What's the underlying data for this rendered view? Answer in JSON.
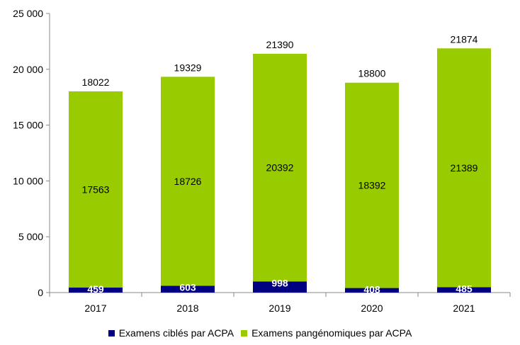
{
  "chart_data": {
    "type": "bar",
    "stacked": true,
    "categories": [
      "2017",
      "2018",
      "2019",
      "2020",
      "2021"
    ],
    "series": [
      {
        "name": "Examens ciblés par ACPA",
        "color": "#000080",
        "values": [
          459,
          603,
          998,
          408,
          485
        ]
      },
      {
        "name": "Examens pangénomiques par ACPA",
        "color": "#99cc00",
        "values": [
          17563,
          18726,
          20392,
          18392,
          21389
        ]
      }
    ],
    "totals": [
      18022,
      19329,
      21390,
      18800,
      21874
    ],
    "ylim": [
      0,
      25000
    ],
    "yticks": [
      0,
      5000,
      10000,
      15000,
      20000,
      25000
    ],
    "ytick_labels": [
      "0",
      "5 000",
      "10 000",
      "15 000",
      "20 000",
      "25 000"
    ],
    "grid": false,
    "legend": "bottom"
  }
}
